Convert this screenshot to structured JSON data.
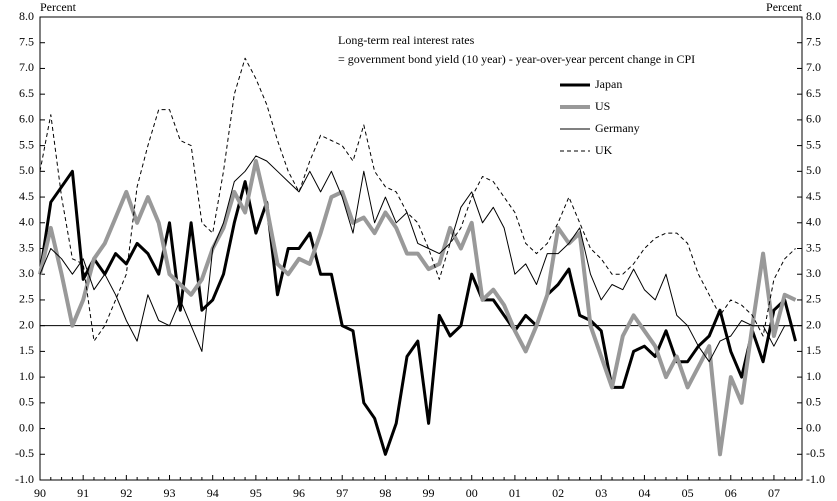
{
  "chart_data": {
    "type": "line",
    "title": "Long-term real interest rates",
    "subtitle": "= government bond yield (10 year) - year-over-year percent change in CPI",
    "y_label": "Percent",
    "y2_label": "Percent",
    "x": [
      1990,
      1990.25,
      1990.5,
      1990.75,
      1991,
      1991.25,
      1991.5,
      1991.75,
      1992,
      1992.25,
      1992.5,
      1992.75,
      1993,
      1993.25,
      1993.5,
      1993.75,
      1994,
      1994.25,
      1994.5,
      1994.75,
      1995,
      1995.25,
      1995.5,
      1995.75,
      1996,
      1996.25,
      1996.5,
      1996.75,
      1997,
      1997.25,
      1997.5,
      1997.75,
      1998,
      1998.25,
      1998.5,
      1998.75,
      1999,
      1999.25,
      1999.5,
      1999.75,
      2000,
      2000.25,
      2000.5,
      2000.75,
      2001,
      2001.25,
      2001.5,
      2001.75,
      2002,
      2002.25,
      2002.5,
      2002.75,
      2003,
      2003.25,
      2003.5,
      2003.75,
      2004,
      2004.25,
      2004.5,
      2004.75,
      2005,
      2005.25,
      2005.5,
      2005.75,
      2006,
      2006.25,
      2006.5,
      2006.75,
      2007,
      2007.25,
      2007.5
    ],
    "series": [
      {
        "name": "Japan",
        "color": "#000000",
        "width": 3,
        "dash": false,
        "values": [
          3.0,
          4.4,
          4.7,
          5.0,
          2.9,
          3.3,
          3.0,
          3.4,
          3.2,
          3.6,
          3.4,
          3.0,
          4.0,
          2.3,
          4.0,
          2.3,
          2.5,
          3.0,
          4.0,
          4.8,
          3.8,
          4.4,
          2.6,
          3.5,
          3.5,
          3.8,
          3.0,
          3.0,
          2.0,
          1.9,
          0.5,
          0.2,
          -0.5,
          0.1,
          1.4,
          1.7,
          0.1,
          2.2,
          1.8,
          2.0,
          3.0,
          2.5,
          2.5,
          2.2,
          1.9,
          2.2,
          2.0,
          2.6,
          2.8,
          3.1,
          2.2,
          2.1,
          1.9,
          0.8,
          0.8,
          1.5,
          1.6,
          1.4,
          1.9,
          1.3,
          1.3,
          1.6,
          1.8,
          2.3,
          1.5,
          1.0,
          1.9,
          1.3,
          2.3,
          2.5,
          1.7
        ]
      },
      {
        "name": "US",
        "color": "#999999",
        "width": 4,
        "dash": false,
        "values": [
          3.0,
          3.9,
          3.0,
          2.0,
          2.5,
          3.3,
          3.6,
          4.1,
          4.6,
          4.0,
          4.5,
          4.0,
          3.0,
          2.8,
          2.6,
          2.9,
          3.5,
          3.9,
          4.6,
          4.2,
          5.2,
          4.3,
          3.2,
          3.0,
          3.3,
          3.2,
          3.8,
          4.5,
          4.6,
          4.0,
          4.1,
          3.8,
          4.2,
          3.9,
          3.4,
          3.4,
          3.1,
          3.2,
          3.9,
          3.5,
          4.0,
          2.5,
          2.7,
          2.4,
          1.9,
          1.5,
          2.0,
          2.6,
          3.9,
          3.6,
          3.8,
          2.0,
          1.4,
          0.8,
          1.8,
          2.2,
          1.9,
          1.6,
          1.0,
          1.4,
          0.8,
          1.2,
          1.6,
          -0.5,
          1.0,
          0.5,
          2.0,
          3.4,
          1.8,
          2.6,
          2.5
        ]
      },
      {
        "name": "Germany",
        "color": "#000000",
        "width": 1,
        "dash": false,
        "values": [
          3.0,
          3.5,
          3.3,
          3.0,
          3.3,
          2.7,
          3.0,
          2.6,
          2.1,
          1.7,
          2.6,
          2.1,
          2.0,
          2.5,
          2.0,
          1.5,
          3.5,
          4.0,
          4.8,
          5.0,
          5.3,
          5.2,
          5.0,
          4.8,
          4.6,
          5.0,
          4.6,
          5.0,
          4.5,
          3.8,
          5.0,
          4.0,
          4.5,
          4.0,
          4.2,
          3.6,
          3.5,
          3.4,
          3.6,
          4.3,
          4.6,
          4.0,
          4.3,
          3.9,
          3.0,
          3.2,
          2.8,
          3.4,
          3.4,
          3.6,
          3.9,
          3.0,
          2.5,
          2.8,
          2.7,
          3.1,
          2.7,
          2.5,
          3.0,
          2.2,
          2.0,
          1.6,
          1.3,
          1.7,
          1.8,
          2.1,
          2.0,
          2.0,
          1.6,
          2.0,
          2.0
        ]
      },
      {
        "name": "UK",
        "color": "#000000",
        "width": 1,
        "dash": true,
        "values": [
          5.0,
          6.1,
          4.5,
          3.3,
          3.2,
          1.7,
          2.0,
          2.5,
          3.0,
          4.7,
          5.5,
          6.2,
          6.2,
          5.6,
          5.5,
          4.0,
          3.8,
          5.0,
          6.5,
          7.2,
          6.8,
          6.3,
          5.6,
          5.0,
          4.6,
          5.2,
          5.7,
          5.6,
          5.5,
          5.2,
          5.9,
          5.0,
          4.7,
          4.6,
          4.2,
          4.0,
          3.5,
          2.9,
          3.6,
          3.9,
          4.5,
          4.9,
          4.8,
          4.5,
          4.2,
          3.6,
          3.4,
          3.6,
          4.0,
          4.5,
          4.0,
          3.5,
          3.3,
          3.0,
          3.0,
          3.2,
          3.5,
          3.7,
          3.8,
          3.8,
          3.6,
          3.0,
          2.6,
          2.2,
          2.5,
          2.4,
          2.2,
          1.8,
          2.9,
          3.3,
          3.5
        ]
      }
    ],
    "reference_line": 2.0,
    "xlim": [
      1990,
      2007.65
    ],
    "ylim": [
      -1.0,
      8.0
    ],
    "xticks": [
      {
        "value": 1990,
        "label": "90"
      },
      {
        "value": 1991,
        "label": "91"
      },
      {
        "value": 1992,
        "label": "92"
      },
      {
        "value": 1993,
        "label": "93"
      },
      {
        "value": 1994,
        "label": "94"
      },
      {
        "value": 1995,
        "label": "95"
      },
      {
        "value": 1996,
        "label": "96"
      },
      {
        "value": 1997,
        "label": "97"
      },
      {
        "value": 1998,
        "label": "98"
      },
      {
        "value": 1999,
        "label": "99"
      },
      {
        "value": 2000,
        "label": "00"
      },
      {
        "value": 2001,
        "label": "01"
      },
      {
        "value": 2002,
        "label": "02"
      },
      {
        "value": 2003,
        "label": "03"
      },
      {
        "value": 2004,
        "label": "04"
      },
      {
        "value": 2005,
        "label": "05"
      },
      {
        "value": 2006,
        "label": "06"
      },
      {
        "value": 2007,
        "label": "07"
      }
    ],
    "yticks": [
      {
        "value": -1,
        "label": "-1.0"
      },
      {
        "value": -0.5,
        "label": "-0.5"
      },
      {
        "value": 0,
        "label": "0.0"
      },
      {
        "value": 0.5,
        "label": "0.5"
      },
      {
        "value": 1,
        "label": "1.0"
      },
      {
        "value": 1.5,
        "label": "1.5"
      },
      {
        "value": 2,
        "label": "2.0"
      },
      {
        "value": 2.5,
        "label": "2.5"
      },
      {
        "value": 3,
        "label": "3.0"
      },
      {
        "value": 3.5,
        "label": "3.5"
      },
      {
        "value": 4,
        "label": "4.0"
      },
      {
        "value": 4.5,
        "label": "4.5"
      },
      {
        "value": 5,
        "label": "5.0"
      },
      {
        "value": 5.5,
        "label": "5.5"
      },
      {
        "value": 6,
        "label": "6.0"
      },
      {
        "value": 6.5,
        "label": "6.5"
      },
      {
        "value": 7,
        "label": "7.0"
      },
      {
        "value": 7.5,
        "label": "7.5"
      },
      {
        "value": 8,
        "label": "8.0"
      }
    ],
    "grid": false
  }
}
